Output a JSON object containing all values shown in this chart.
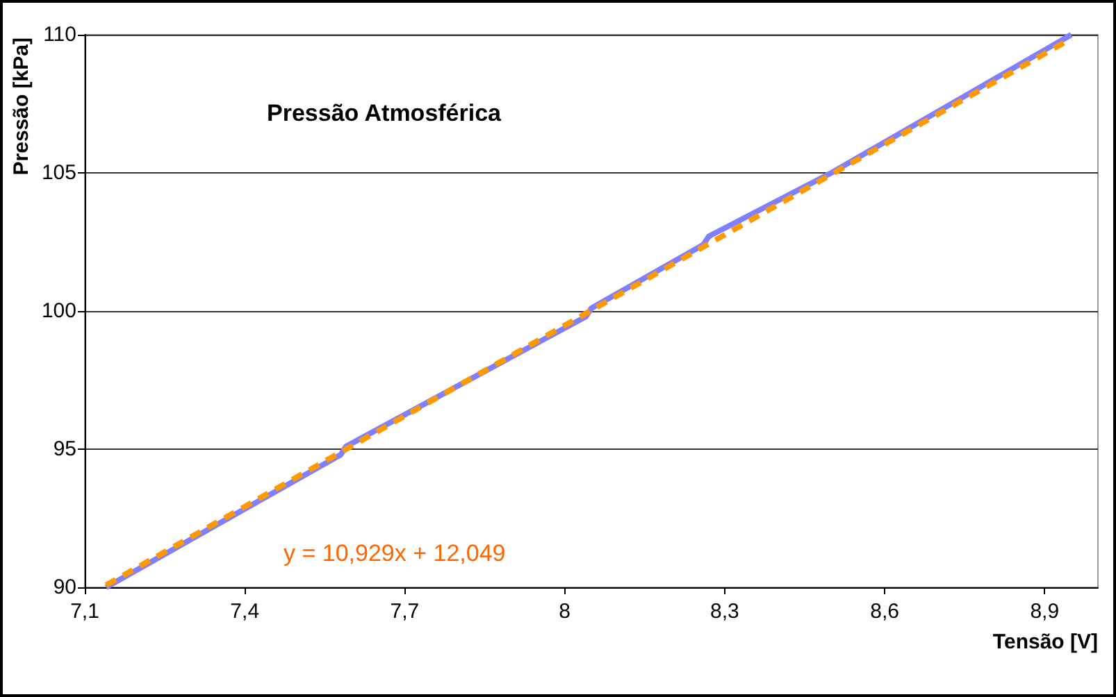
{
  "chart_data": {
    "type": "line",
    "title": "Pressão Atmosférica",
    "xlabel": "Tensão [V]",
    "ylabel": "Pressão [kPa]",
    "annotations": [
      "y = 10,929x + 12,049"
    ],
    "series": [
      {
        "x": [
          7.14,
          7.58,
          7.59,
          8.04,
          8.05,
          8.26,
          8.27,
          8.5,
          8.95
        ],
        "values": [
          90,
          94.8,
          95.1,
          99.8,
          100.1,
          102.4,
          102.7,
          105,
          110
        ],
        "color": "#8080ff"
      },
      {
        "type": "line",
        "x": [
          7.14,
          8.95
        ],
        "values": [
          90.08,
          109.86
        ],
        "color": "#ff9900",
        "line_style": "dashed"
      }
    ],
    "xlim": [
      7.1,
      9.0
    ],
    "xticks": [
      {
        "value": 7.1,
        "label": "7,1"
      },
      {
        "value": 7.4,
        "label": "7,4"
      },
      {
        "value": 7.7,
        "label": "7,7"
      },
      8,
      {
        "value": 8.3,
        "label": "8,3"
      },
      {
        "value": 8.6,
        "label": "8,6"
      },
      {
        "value": 8.9,
        "label": "8,9"
      }
    ],
    "ylim": [
      90,
      110
    ],
    "yticks": [
      90,
      95,
      100,
      105,
      110
    ],
    "grid": "y",
    "marker": "none",
    "line_style": "solid"
  }
}
